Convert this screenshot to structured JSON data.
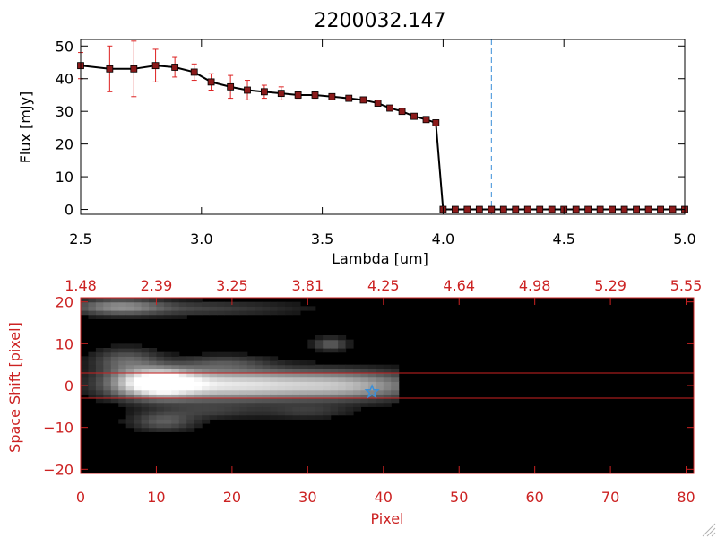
{
  "colors": {
    "axis_top": "#000000",
    "axis_bottom": "#cc2222",
    "series_line": "#000000",
    "marker_fill": "#8b1a1a",
    "error_bar": "#dd2222",
    "vline": "#3a8fd8",
    "star": "#3a8fd8",
    "image_bg": "#000000"
  },
  "chart_data": [
    {
      "type": "line",
      "title": "2200032.147",
      "xlabel": "Lambda [um]",
      "ylabel": "Flux [mJy]",
      "xlim": [
        2.5,
        5.0
      ],
      "ylim": [
        -1.5,
        52
      ],
      "xticks": [
        2.5,
        3.0,
        3.5,
        4.0,
        4.5,
        5.0
      ],
      "xtick_labels": [
        "2.5",
        "3.0",
        "3.5",
        "4.0",
        "4.5",
        "5.0"
      ],
      "yticks": [
        0,
        10,
        20,
        30,
        40,
        50
      ],
      "ytick_labels": [
        "0",
        "10",
        "20",
        "30",
        "40",
        "50"
      ],
      "grid": false,
      "vline_x": 4.2,
      "series": [
        {
          "x": [
            2.5,
            2.62,
            2.72,
            2.81,
            2.89,
            2.97,
            3.04,
            3.12,
            3.19,
            3.26,
            3.33,
            3.4,
            3.47,
            3.54,
            3.61,
            3.67,
            3.73,
            3.78,
            3.83,
            3.88,
            3.93,
            3.97,
            4.0,
            4.05,
            4.1,
            4.15,
            4.2,
            4.25,
            4.3,
            4.35,
            4.4,
            4.45,
            4.5,
            4.55,
            4.6,
            4.65,
            4.7,
            4.75,
            4.8,
            4.85,
            4.9,
            4.95,
            5.0
          ],
          "y": [
            44,
            43,
            43,
            44,
            43.5,
            42,
            39,
            37.5,
            36.5,
            36,
            35.5,
            35,
            35,
            34.5,
            34,
            33.5,
            32.5,
            31,
            30,
            28.5,
            27.5,
            26.5,
            0,
            0,
            0,
            0,
            0,
            0,
            0,
            0,
            0,
            0,
            0,
            0,
            0,
            0,
            0,
            0,
            0,
            0,
            0,
            0,
            0
          ],
          "yerr": [
            4,
            7,
            8.5,
            5,
            3,
            2.5,
            2.5,
            3.5,
            3,
            2,
            2,
            1,
            1,
            0.8,
            0.8,
            0.8,
            0.6,
            0.6,
            0.6,
            0.6,
            0.6,
            0.6,
            0,
            0,
            0,
            0,
            0,
            0,
            0,
            0,
            0,
            0,
            0,
            0,
            0,
            0,
            0,
            0,
            0,
            0,
            0,
            0,
            0
          ]
        }
      ]
    },
    {
      "type": "heatmap",
      "xlabel": "Pixel",
      "ylabel": "Space Shift [pixel]",
      "xlim": [
        0,
        81
      ],
      "ylim": [
        -21,
        21
      ],
      "xticks": [
        0,
        10,
        20,
        30,
        40,
        50,
        60,
        70,
        80
      ],
      "xtick_labels": [
        "0",
        "10",
        "20",
        "30",
        "40",
        "50",
        "60",
        "70",
        "80"
      ],
      "yticks": [
        -20,
        -10,
        0,
        10,
        20
      ],
      "ytick_labels": [
        "−20",
        "−10",
        "0",
        "10",
        "20"
      ],
      "top_tick_labels": [
        "1.48",
        "2.39",
        "3.25",
        "3.81",
        "4.25",
        "4.64",
        "4.98",
        "5.29",
        "5.55"
      ],
      "hlines_y": [
        3,
        -3
      ],
      "star": {
        "x": 38.5,
        "y": -1.5
      },
      "blobs": [
        {
          "x": 10,
          "y": 0.8,
          "sx": 3.5,
          "sy": 2.2,
          "amp": 1.0
        },
        {
          "x": 17,
          "y": 0.3,
          "sx": 8,
          "sy": 2.5,
          "amp": 0.55
        },
        {
          "x": 27,
          "y": 0.2,
          "sx": 10,
          "sy": 2.2,
          "amp": 0.45
        },
        {
          "x": 36,
          "y": 0.0,
          "sx": 6,
          "sy": 2.2,
          "amp": 0.35
        },
        {
          "x": 5,
          "y": 19,
          "sx": 4,
          "sy": 1.3,
          "amp": 0.4
        },
        {
          "x": 15,
          "y": 18.5,
          "sx": 10,
          "sy": 1.2,
          "amp": 0.18
        },
        {
          "x": 6,
          "y": 6,
          "sx": 3,
          "sy": 2,
          "amp": 0.3
        },
        {
          "x": 11,
          "y": -8.5,
          "sx": 3,
          "sy": 1.5,
          "amp": 0.28
        },
        {
          "x": 19,
          "y": 5.5,
          "sx": 4,
          "sy": 1.2,
          "amp": 0.2
        },
        {
          "x": 33,
          "y": 10,
          "sx": 1.5,
          "sy": 1,
          "amp": 0.3
        },
        {
          "x": 30,
          "y": -6,
          "sx": 4,
          "sy": 1.2,
          "amp": 0.15
        },
        {
          "x": 17,
          "y": -6,
          "sx": 5,
          "sy": 1.2,
          "amp": 0.15
        }
      ]
    }
  ]
}
